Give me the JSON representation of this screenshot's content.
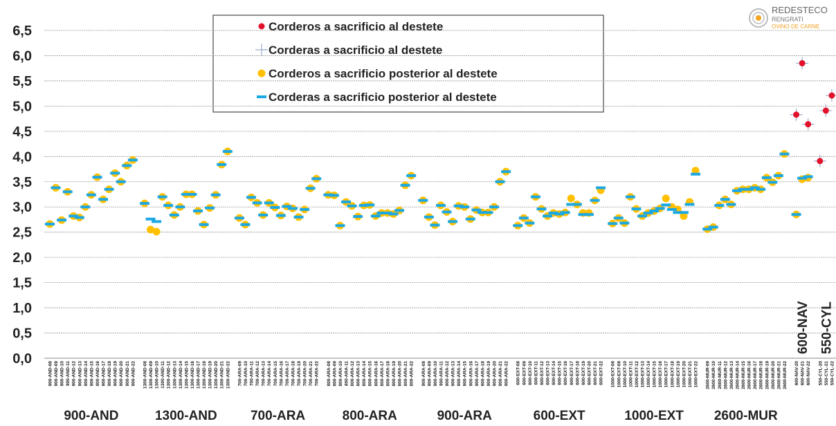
{
  "chart_data": {
    "type": "scatter",
    "logo": {
      "name": "REDESTECO",
      "line1": "RENGRATI",
      "line2": "OVINO DE CARNE"
    },
    "categories": [
      "900-AND-08",
      "900-AND-09",
      "900-AND-10",
      "900-AND-11",
      "900-AND-12",
      "900-AND-13",
      "900-AND-14",
      "900-AND-15",
      "900-AND-16",
      "900-AND-17",
      "900-AND-18",
      "900-AND-19",
      "900-AND-20",
      "900-AND-21",
      "900-AND-22",
      null,
      "1300-AND-08",
      "1300-AND-09",
      "1300-AND-10",
      "1300-AND-11",
      "1300-AND-12",
      "1300-AND-13",
      "1300-AND-14",
      "1300-AND-15",
      "1300-AND-16",
      "1300-AND-17",
      "1300-AND-18",
      "1300-AND-19",
      "1300-AND-20",
      "1300-AND-21",
      "1300-AND-22",
      null,
      "700-ARA-09",
      "700-ARA-10",
      "700-ARA-11",
      "700-ARA-12",
      "700-ARA-13",
      "700-ARA-14",
      "700-ARA-15",
      "700-ARA-16",
      "700-ARA-17",
      "700-ARA-18",
      "700-ARA-19",
      "700-ARA-20",
      "700-ARA-21",
      "700-ARA-22",
      null,
      "800-ARA-08",
      "800-ARA-09",
      "800-ARA-10",
      "800-ARA-11",
      "800-ARA-12",
      "800-ARA-13",
      "800-ARA-14",
      "800-ARA-15",
      "800-ARA-16",
      "800-ARA-17",
      "800-ARA-18",
      "800-ARA-19",
      "800-ARA-20",
      "800-ARA-21",
      "800-ARA-22",
      null,
      "900-ARA-08",
      "900-ARA-09",
      "900-ARA-10",
      "900-ARA-11",
      "900-ARA-12",
      "900-ARA-13",
      "900-ARA-14",
      "900-ARA-15",
      "900-ARA-16",
      "900-ARA-17",
      "900-ARA-18",
      "900-ARA-19",
      "900-ARA-20",
      "900-ARA-21",
      "900-ARA-22",
      null,
      "600-EXT-08",
      "600-EXT-09",
      "600-EXT-10",
      "600-EXT-11",
      "600-EXT-12",
      "600-EXT-13",
      "600-EXT-14",
      "600-EXT-15",
      "600-EXT-16",
      "600-EXT-17",
      "600-EXT-18",
      "600-EXT-19",
      "600-EXT-20",
      "600-EXT-21",
      "600-EXT-22",
      null,
      "1000-EXT-08",
      "1000-EXT-09",
      "1000-EXT-10",
      "1000-EXT-11",
      "1000-EXT-12",
      "1000-EXT-13",
      "1000-EXT-14",
      "1000-EXT-15",
      "1000-EXT-16",
      "1000-EXT-17",
      "1000-EXT-18",
      "1000-EXT-19",
      "1000-EXT-20",
      "1000-EXT-21",
      "1000-EXT-22",
      null,
      "2600-MUR-09",
      "2600-MUR-10",
      "2600-MUR-11",
      "2600-MUR-12",
      "2600-MUR-13",
      "2600-MUR-14",
      "2600-MUR-15",
      "2600-MUR-16",
      "2600-MUR-17",
      "2600-MUR-18",
      "2600-MUR-19",
      "2600-MUR-20",
      "2600-MUR-21",
      "2600-MUR-22",
      null,
      "600-NAV-20",
      "600-NAV-21",
      "600-NAV-22",
      null,
      "550-CYL-20",
      "550-CYL-21",
      "550-CYL-22"
    ],
    "groups": [
      "900-AND",
      "1300-AND",
      "700-ARA",
      "800-ARA",
      "900-ARA",
      "600-EXT",
      "1000-EXT",
      "2600-MUR",
      "600-NAV",
      "550-CYL"
    ],
    "series": [
      {
        "name": "Corderos a sacrificio al destete",
        "color": "#e3122b",
        "marker": "circle",
        "values": [
          null,
          null,
          null,
          null,
          null,
          null,
          null,
          null,
          null,
          null,
          null,
          null,
          null,
          null,
          null,
          null,
          null,
          null,
          null,
          null,
          null,
          null,
          null,
          null,
          null,
          null,
          null,
          null,
          null,
          null,
          null,
          null,
          null,
          null,
          null,
          null,
          null,
          null,
          null,
          null,
          null,
          null,
          null,
          null,
          null,
          null,
          null,
          null,
          null,
          null,
          null,
          null,
          null,
          null,
          null,
          null,
          null,
          null,
          null,
          null,
          null,
          null,
          null,
          null,
          null,
          null,
          null,
          null,
          null,
          null,
          null,
          null,
          null,
          null,
          null,
          null,
          null,
          null,
          null,
          null,
          null,
          null,
          null,
          null,
          null,
          null,
          null,
          null,
          null,
          null,
          null,
          null,
          null,
          null,
          null,
          null,
          null,
          null,
          null,
          null,
          null,
          null,
          null,
          null,
          null,
          null,
          null,
          null,
          null,
          null,
          null,
          null,
          null,
          null,
          null,
          null,
          null,
          null,
          null,
          null,
          null,
          null,
          null,
          null,
          null,
          null,
          4.83,
          5.85,
          4.64,
          null,
          3.91,
          4.91,
          5.21
        ]
      },
      {
        "name": "Corderas a sacrificio al destete",
        "color": "#9aaccc",
        "marker": "plus",
        "values": [
          null,
          null,
          null,
          null,
          null,
          null,
          null,
          null,
          null,
          null,
          null,
          null,
          null,
          null,
          null,
          null,
          null,
          null,
          null,
          null,
          null,
          null,
          null,
          null,
          null,
          null,
          null,
          null,
          null,
          null,
          null,
          null,
          null,
          null,
          null,
          null,
          null,
          null,
          null,
          null,
          null,
          null,
          null,
          null,
          null,
          null,
          null,
          null,
          null,
          null,
          null,
          null,
          null,
          null,
          null,
          null,
          null,
          null,
          null,
          null,
          null,
          null,
          null,
          null,
          null,
          null,
          null,
          null,
          null,
          null,
          null,
          null,
          null,
          null,
          null,
          null,
          null,
          null,
          null,
          null,
          null,
          null,
          null,
          null,
          null,
          null,
          null,
          null,
          null,
          null,
          null,
          null,
          null,
          null,
          null,
          null,
          null,
          null,
          null,
          null,
          null,
          null,
          null,
          null,
          null,
          null,
          null,
          null,
          null,
          null,
          null,
          null,
          null,
          null,
          null,
          null,
          null,
          null,
          null,
          null,
          null,
          null,
          null,
          null,
          null,
          null,
          4.83,
          5.85,
          4.64,
          null,
          3.91,
          4.91,
          5.21
        ]
      },
      {
        "name": "Corderos a sacrificio posterior al destete",
        "color": "#ffc000",
        "marker": "circle",
        "values": [
          2.66,
          3.38,
          2.74,
          3.3,
          2.82,
          2.79,
          3.0,
          3.24,
          3.59,
          3.15,
          3.35,
          3.67,
          3.5,
          3.82,
          3.93,
          null,
          3.07,
          2.55,
          2.51,
          3.2,
          3.03,
          2.84,
          3.0,
          3.25,
          3.25,
          2.92,
          2.65,
          2.98,
          3.24,
          3.84,
          4.1,
          null,
          2.78,
          2.65,
          3.19,
          3.08,
          2.84,
          3.08,
          2.99,
          2.83,
          3.01,
          2.97,
          2.8,
          2.95,
          3.37,
          3.56,
          null,
          3.24,
          3.23,
          2.63,
          3.1,
          3.02,
          2.81,
          3.03,
          3.04,
          2.82,
          2.88,
          2.88,
          2.86,
          2.93,
          3.43,
          3.62,
          null,
          3.13,
          2.8,
          2.64,
          3.03,
          2.9,
          2.71,
          3.02,
          3.0,
          2.76,
          2.94,
          2.89,
          2.89,
          3.0,
          3.5,
          3.7,
          null,
          2.63,
          2.78,
          2.68,
          3.2,
          2.96,
          2.82,
          2.88,
          2.86,
          2.89,
          3.17,
          3.05,
          2.88,
          2.88,
          3.13,
          3.33,
          null,
          2.67,
          2.78,
          2.68,
          3.2,
          2.96,
          2.82,
          2.88,
          2.92,
          2.97,
          3.17,
          3.0,
          2.95,
          2.82,
          3.1,
          3.72,
          null,
          2.56,
          2.6,
          3.03,
          3.15,
          3.05,
          3.32,
          3.35,
          3.35,
          3.38,
          3.35,
          3.58,
          3.49,
          3.62,
          4.05,
          null,
          2.85,
          3.55,
          3.58,
          null,
          null,
          null,
          null
        ]
      },
      {
        "name": "Corderas a sacrificio posterior al destete",
        "color": "#1ca8e3",
        "marker": "dash",
        "values": [
          2.66,
          3.38,
          2.74,
          3.3,
          2.82,
          2.79,
          3.0,
          3.24,
          3.59,
          3.15,
          3.35,
          3.67,
          3.5,
          3.82,
          3.93,
          null,
          3.07,
          2.76,
          2.71,
          3.2,
          3.03,
          2.84,
          3.0,
          3.25,
          3.25,
          2.92,
          2.65,
          2.98,
          3.24,
          3.84,
          4.1,
          null,
          2.78,
          2.65,
          3.19,
          3.08,
          2.84,
          3.08,
          2.99,
          2.83,
          3.01,
          2.97,
          2.8,
          2.95,
          3.37,
          3.56,
          null,
          3.24,
          3.23,
          2.63,
          3.1,
          3.02,
          2.81,
          3.03,
          3.04,
          2.82,
          2.88,
          2.88,
          2.86,
          2.93,
          3.43,
          3.62,
          null,
          3.13,
          2.8,
          2.64,
          3.03,
          2.9,
          2.71,
          3.02,
          3.0,
          2.76,
          2.94,
          2.89,
          2.89,
          3.0,
          3.5,
          3.7,
          null,
          2.63,
          2.78,
          2.68,
          3.2,
          2.96,
          2.82,
          2.88,
          2.86,
          2.89,
          3.05,
          3.05,
          2.85,
          2.85,
          3.13,
          3.38,
          null,
          2.67,
          2.78,
          2.68,
          3.2,
          2.96,
          2.82,
          2.88,
          2.92,
          2.97,
          3.04,
          2.95,
          2.89,
          2.89,
          3.05,
          3.65,
          null,
          2.56,
          2.6,
          3.03,
          3.15,
          3.05,
          3.32,
          3.35,
          3.35,
          3.38,
          3.35,
          3.58,
          3.49,
          3.62,
          4.05,
          null,
          2.85,
          3.57,
          3.6,
          null,
          null,
          null,
          null
        ]
      }
    ],
    "ylim": [
      0,
      6.5
    ],
    "yticks": [
      {
        "value": 0,
        "label": "0,0"
      },
      {
        "value": 0.5,
        "label": "0,5"
      },
      {
        "value": 1,
        "label": "1,0"
      },
      {
        "value": 1.5,
        "label": "1,5"
      },
      {
        "value": 2,
        "label": "2,0"
      },
      {
        "value": 2.5,
        "label": "2,5"
      },
      {
        "value": 3,
        "label": "3,0"
      },
      {
        "value": 3.5,
        "label": "3,5"
      },
      {
        "value": 4,
        "label": "4,0"
      },
      {
        "value": 4.5,
        "label": "4,5"
      },
      {
        "value": 5,
        "label": "5,0"
      },
      {
        "value": 5.5,
        "label": "5,5"
      },
      {
        "value": 6,
        "label": "6,0"
      },
      {
        "value": 6.5,
        "label": "6,5"
      }
    ],
    "grid": true
  }
}
